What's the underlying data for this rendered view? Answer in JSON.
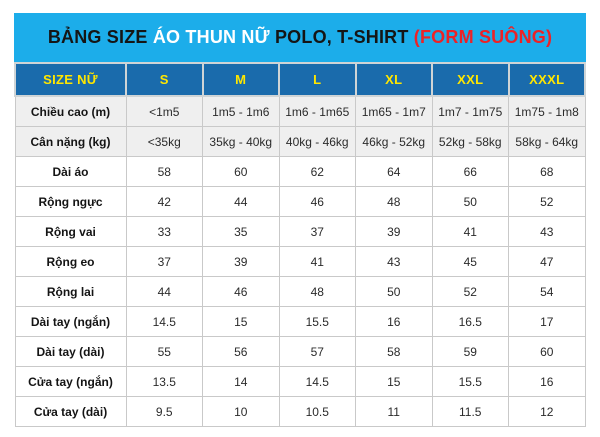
{
  "title": {
    "segments": [
      {
        "text": "BẢNG SIZE ",
        "color": "black"
      },
      {
        "text": "ÁO THUN NỮ ",
        "color": "white"
      },
      {
        "text": "POLO, T-SHIRT ",
        "color": "black"
      },
      {
        "text": "(FORM SUÔNG)",
        "color": "red"
      }
    ],
    "full_text": "BẢNG SIZE ÁO THUN NỮ POLO, T-SHIRT (FORM SUÔNG)"
  },
  "colors": {
    "title_bar": "#1cadea",
    "header_bg": "#1a6bac",
    "header_text": "#ffe600",
    "accent_red": "#ec2227",
    "cell_border": "#c9c9c9",
    "shaded_row": "#efefef"
  },
  "chart_data": {
    "type": "table",
    "title": "BẢNG SIZE ÁO THUN NỮ POLO, T-SHIRT (FORM SUÔNG)",
    "columns": [
      "SIZE NỮ",
      "S",
      "M",
      "L",
      "XL",
      "XXL",
      "XXXL"
    ],
    "rows": [
      {
        "label": "Chiều cao (m)",
        "shaded": true,
        "values": [
          "<1m5",
          "1m5 - 1m6",
          "1m6 - 1m65",
          "1m65 - 1m7",
          "1m7 - 1m75",
          "1m75 - 1m8"
        ]
      },
      {
        "label": "Cân nặng (kg)",
        "shaded": true,
        "values": [
          "<35kg",
          "35kg - 40kg",
          "40kg - 46kg",
          "46kg - 52kg",
          "52kg - 58kg",
          "58kg - 64kg"
        ]
      },
      {
        "label": "Dài áo",
        "shaded": false,
        "values": [
          "58",
          "60",
          "62",
          "64",
          "66",
          "68"
        ]
      },
      {
        "label": "Rộng ngực",
        "shaded": false,
        "values": [
          "42",
          "44",
          "46",
          "48",
          "50",
          "52"
        ]
      },
      {
        "label": "Rộng vai",
        "shaded": false,
        "values": [
          "33",
          "35",
          "37",
          "39",
          "41",
          "43"
        ]
      },
      {
        "label": "Rộng eo",
        "shaded": false,
        "values": [
          "37",
          "39",
          "41",
          "43",
          "45",
          "47"
        ]
      },
      {
        "label": "Rộng lai",
        "shaded": false,
        "values": [
          "44",
          "46",
          "48",
          "50",
          "52",
          "54"
        ]
      },
      {
        "label": "Dài tay (ngắn)",
        "shaded": false,
        "values": [
          "14.5",
          "15",
          "15.5",
          "16",
          "16.5",
          "17"
        ]
      },
      {
        "label": "Dài tay (dài)",
        "shaded": false,
        "values": [
          "55",
          "56",
          "57",
          "58",
          "59",
          "60"
        ]
      },
      {
        "label": "Cửa tay (ngắn)",
        "shaded": false,
        "values": [
          "13.5",
          "14",
          "14.5",
          "15",
          "15.5",
          "16"
        ]
      },
      {
        "label": "Cửa tay (dài)",
        "shaded": false,
        "values": [
          "9.5",
          "10",
          "10.5",
          "11",
          "11.5",
          "12"
        ]
      }
    ]
  }
}
